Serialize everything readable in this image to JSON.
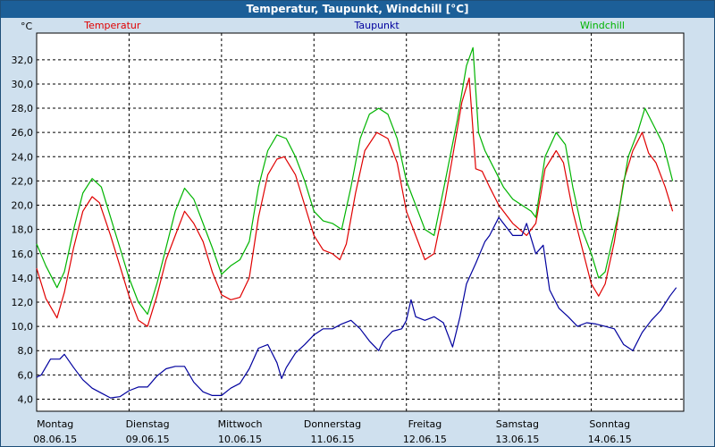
{
  "window": {
    "title": "Temperatur, Taupunkt, Windchill [°C]"
  },
  "chart_data": {
    "type": "line",
    "title": "Temperatur, Taupunkt, Windchill [°C]",
    "ylabel": "°C",
    "xlabel": "",
    "ylim": [
      3.0,
      34.2
    ],
    "xlim": [
      0,
      7
    ],
    "grid": true,
    "y_ticks": [
      4,
      6,
      8,
      10,
      12,
      14,
      16,
      18,
      20,
      22,
      24,
      26,
      28,
      30,
      32
    ],
    "y_tick_labels": [
      "4,0",
      "6,0",
      "8,0",
      "10,0",
      "12,0",
      "14,0",
      "16,0",
      "18,0",
      "20,0",
      "22,0",
      "24,0",
      "26,0",
      "28,0",
      "30,0",
      "32,0"
    ],
    "x_ticks": [
      0,
      1,
      2,
      3,
      4,
      5,
      6,
      7
    ],
    "days": [
      {
        "name": "Montag",
        "date": "08.06.15"
      },
      {
        "name": "Dienstag",
        "date": "09.06.15"
      },
      {
        "name": "Mittwoch",
        "date": "10.06.15"
      },
      {
        "name": "Donnerstag",
        "date": "11.06.15"
      },
      {
        "name": "Freitag",
        "date": "12.06.15"
      },
      {
        "name": "Samstag",
        "date": "13.06.15"
      },
      {
        "name": "Sonntag",
        "date": "14.06.15"
      }
    ],
    "series": [
      {
        "name": "Temperatur",
        "color": "#e00000",
        "points": [
          [
            0.0,
            14.8
          ],
          [
            0.1,
            12.3
          ],
          [
            0.22,
            10.7
          ],
          [
            0.3,
            12.8
          ],
          [
            0.4,
            16.5
          ],
          [
            0.5,
            19.5
          ],
          [
            0.6,
            20.7
          ],
          [
            0.68,
            20.2
          ],
          [
            0.8,
            17.5
          ],
          [
            0.9,
            15.0
          ],
          [
            1.0,
            12.5
          ],
          [
            1.1,
            10.5
          ],
          [
            1.2,
            10.0
          ],
          [
            1.3,
            12.5
          ],
          [
            1.4,
            15.5
          ],
          [
            1.5,
            17.5
          ],
          [
            1.6,
            19.5
          ],
          [
            1.7,
            18.5
          ],
          [
            1.8,
            17.0
          ],
          [
            1.9,
            14.5
          ],
          [
            2.0,
            12.6
          ],
          [
            2.1,
            12.2
          ],
          [
            2.2,
            12.4
          ],
          [
            2.3,
            14.0
          ],
          [
            2.4,
            19.0
          ],
          [
            2.5,
            22.5
          ],
          [
            2.6,
            23.8
          ],
          [
            2.68,
            24.0
          ],
          [
            2.8,
            22.5
          ],
          [
            2.9,
            20.0
          ],
          [
            3.0,
            17.5
          ],
          [
            3.1,
            16.3
          ],
          [
            3.2,
            16.0
          ],
          [
            3.28,
            15.5
          ],
          [
            3.35,
            16.8
          ],
          [
            3.45,
            21.0
          ],
          [
            3.55,
            24.5
          ],
          [
            3.68,
            26.0
          ],
          [
            3.8,
            25.5
          ],
          [
            3.9,
            23.5
          ],
          [
            4.0,
            19.5
          ],
          [
            4.1,
            17.5
          ],
          [
            4.2,
            15.5
          ],
          [
            4.3,
            16.0
          ],
          [
            4.42,
            20.5
          ],
          [
            4.5,
            24.0
          ],
          [
            4.6,
            28.5
          ],
          [
            4.68,
            30.5
          ],
          [
            4.75,
            23.0
          ],
          [
            4.82,
            22.8
          ],
          [
            4.9,
            21.5
          ],
          [
            5.0,
            20.0
          ],
          [
            5.1,
            19.0
          ],
          [
            5.15,
            18.5
          ],
          [
            5.3,
            17.5
          ],
          [
            5.4,
            18.5
          ],
          [
            5.5,
            23.0
          ],
          [
            5.62,
            24.5
          ],
          [
            5.7,
            23.5
          ],
          [
            5.8,
            19.5
          ],
          [
            5.9,
            16.5
          ],
          [
            6.0,
            13.5
          ],
          [
            6.08,
            12.5
          ],
          [
            6.15,
            13.5
          ],
          [
            6.25,
            17.0
          ],
          [
            6.35,
            22.0
          ],
          [
            6.45,
            24.5
          ],
          [
            6.55,
            26.0
          ],
          [
            6.62,
            24.3
          ],
          [
            6.7,
            23.5
          ],
          [
            6.8,
            21.5
          ],
          [
            6.88,
            19.5
          ]
        ]
      },
      {
        "name": "Taupunkt",
        "color": "#00009e",
        "points": [
          [
            0.0,
            5.8
          ],
          [
            0.05,
            6.0
          ],
          [
            0.15,
            7.3
          ],
          [
            0.25,
            7.3
          ],
          [
            0.3,
            7.7
          ],
          [
            0.4,
            6.6
          ],
          [
            0.5,
            5.6
          ],
          [
            0.6,
            4.9
          ],
          [
            0.7,
            4.5
          ],
          [
            0.8,
            4.1
          ],
          [
            0.9,
            4.2
          ],
          [
            1.0,
            4.7
          ],
          [
            1.1,
            5.0
          ],
          [
            1.2,
            5.0
          ],
          [
            1.3,
            5.9
          ],
          [
            1.4,
            6.5
          ],
          [
            1.5,
            6.7
          ],
          [
            1.6,
            6.7
          ],
          [
            1.7,
            5.4
          ],
          [
            1.8,
            4.6
          ],
          [
            1.9,
            4.3
          ],
          [
            2.0,
            4.3
          ],
          [
            2.1,
            4.9
          ],
          [
            2.2,
            5.3
          ],
          [
            2.3,
            6.5
          ],
          [
            2.4,
            8.2
          ],
          [
            2.5,
            8.5
          ],
          [
            2.6,
            7.0
          ],
          [
            2.65,
            5.7
          ],
          [
            2.7,
            6.6
          ],
          [
            2.8,
            7.8
          ],
          [
            2.9,
            8.5
          ],
          [
            3.0,
            9.3
          ],
          [
            3.1,
            9.8
          ],
          [
            3.2,
            9.8
          ],
          [
            3.3,
            10.2
          ],
          [
            3.4,
            10.5
          ],
          [
            3.5,
            9.8
          ],
          [
            3.6,
            8.8
          ],
          [
            3.7,
            8.0
          ],
          [
            3.75,
            8.8
          ],
          [
            3.85,
            9.6
          ],
          [
            3.95,
            9.8
          ],
          [
            4.0,
            10.5
          ],
          [
            4.05,
            12.2
          ],
          [
            4.1,
            10.8
          ],
          [
            4.2,
            10.5
          ],
          [
            4.3,
            10.8
          ],
          [
            4.4,
            10.3
          ],
          [
            4.5,
            8.3
          ],
          [
            4.58,
            10.8
          ],
          [
            4.65,
            13.5
          ],
          [
            4.75,
            15.2
          ],
          [
            4.85,
            17.0
          ],
          [
            4.9,
            17.5
          ],
          [
            5.0,
            19.0
          ],
          [
            5.05,
            18.5
          ],
          [
            5.1,
            18.0
          ],
          [
            5.15,
            17.5
          ],
          [
            5.25,
            17.5
          ],
          [
            5.3,
            18.5
          ],
          [
            5.4,
            16.0
          ],
          [
            5.48,
            16.7
          ],
          [
            5.55,
            13.0
          ],
          [
            5.65,
            11.5
          ],
          [
            5.75,
            10.8
          ],
          [
            5.85,
            10.0
          ],
          [
            5.95,
            10.3
          ],
          [
            6.05,
            10.2
          ],
          [
            6.15,
            10.0
          ],
          [
            6.25,
            9.8
          ],
          [
            6.35,
            8.5
          ],
          [
            6.45,
            8.0
          ],
          [
            6.55,
            9.5
          ],
          [
            6.65,
            10.5
          ],
          [
            6.75,
            11.3
          ],
          [
            6.85,
            12.5
          ],
          [
            6.92,
            13.2
          ]
        ]
      },
      {
        "name": "Windchill",
        "color": "#00b400",
        "points": [
          [
            0.0,
            16.8
          ],
          [
            0.1,
            15.0
          ],
          [
            0.22,
            13.2
          ],
          [
            0.3,
            14.5
          ],
          [
            0.4,
            18.0
          ],
          [
            0.5,
            21.0
          ],
          [
            0.6,
            22.2
          ],
          [
            0.7,
            21.5
          ],
          [
            0.8,
            19.0
          ],
          [
            0.9,
            16.5
          ],
          [
            1.0,
            14.0
          ],
          [
            1.1,
            12.0
          ],
          [
            1.2,
            11.0
          ],
          [
            1.3,
            13.5
          ],
          [
            1.4,
            16.5
          ],
          [
            1.5,
            19.5
          ],
          [
            1.6,
            21.4
          ],
          [
            1.7,
            20.5
          ],
          [
            1.8,
            18.5
          ],
          [
            1.9,
            16.5
          ],
          [
            2.0,
            14.3
          ],
          [
            2.1,
            15.0
          ],
          [
            2.2,
            15.5
          ],
          [
            2.3,
            17.0
          ],
          [
            2.4,
            21.5
          ],
          [
            2.5,
            24.5
          ],
          [
            2.6,
            25.8
          ],
          [
            2.7,
            25.5
          ],
          [
            2.8,
            24.0
          ],
          [
            2.9,
            22.0
          ],
          [
            3.0,
            19.5
          ],
          [
            3.1,
            18.7
          ],
          [
            3.2,
            18.5
          ],
          [
            3.3,
            18.0
          ],
          [
            3.4,
            21.5
          ],
          [
            3.5,
            25.5
          ],
          [
            3.6,
            27.5
          ],
          [
            3.7,
            28.0
          ],
          [
            3.8,
            27.5
          ],
          [
            3.9,
            25.5
          ],
          [
            4.0,
            22.0
          ],
          [
            4.1,
            20.0
          ],
          [
            4.2,
            18.0
          ],
          [
            4.3,
            17.5
          ],
          [
            4.42,
            22.0
          ],
          [
            4.55,
            27.0
          ],
          [
            4.65,
            31.5
          ],
          [
            4.72,
            33.0
          ],
          [
            4.78,
            26.0
          ],
          [
            4.85,
            24.5
          ],
          [
            4.95,
            23.0
          ],
          [
            5.05,
            21.5
          ],
          [
            5.15,
            20.5
          ],
          [
            5.25,
            20.0
          ],
          [
            5.35,
            19.5
          ],
          [
            5.4,
            19.0
          ],
          [
            5.5,
            24.0
          ],
          [
            5.62,
            26.0
          ],
          [
            5.72,
            25.0
          ],
          [
            5.8,
            21.5
          ],
          [
            5.9,
            18.0
          ],
          [
            6.0,
            16.0
          ],
          [
            6.08,
            14.0
          ],
          [
            6.15,
            14.5
          ],
          [
            6.3,
            19.5
          ],
          [
            6.4,
            24.0
          ],
          [
            6.5,
            26.0
          ],
          [
            6.58,
            28.0
          ],
          [
            6.68,
            26.5
          ],
          [
            6.78,
            25.0
          ],
          [
            6.88,
            22.0
          ]
        ]
      }
    ]
  }
}
